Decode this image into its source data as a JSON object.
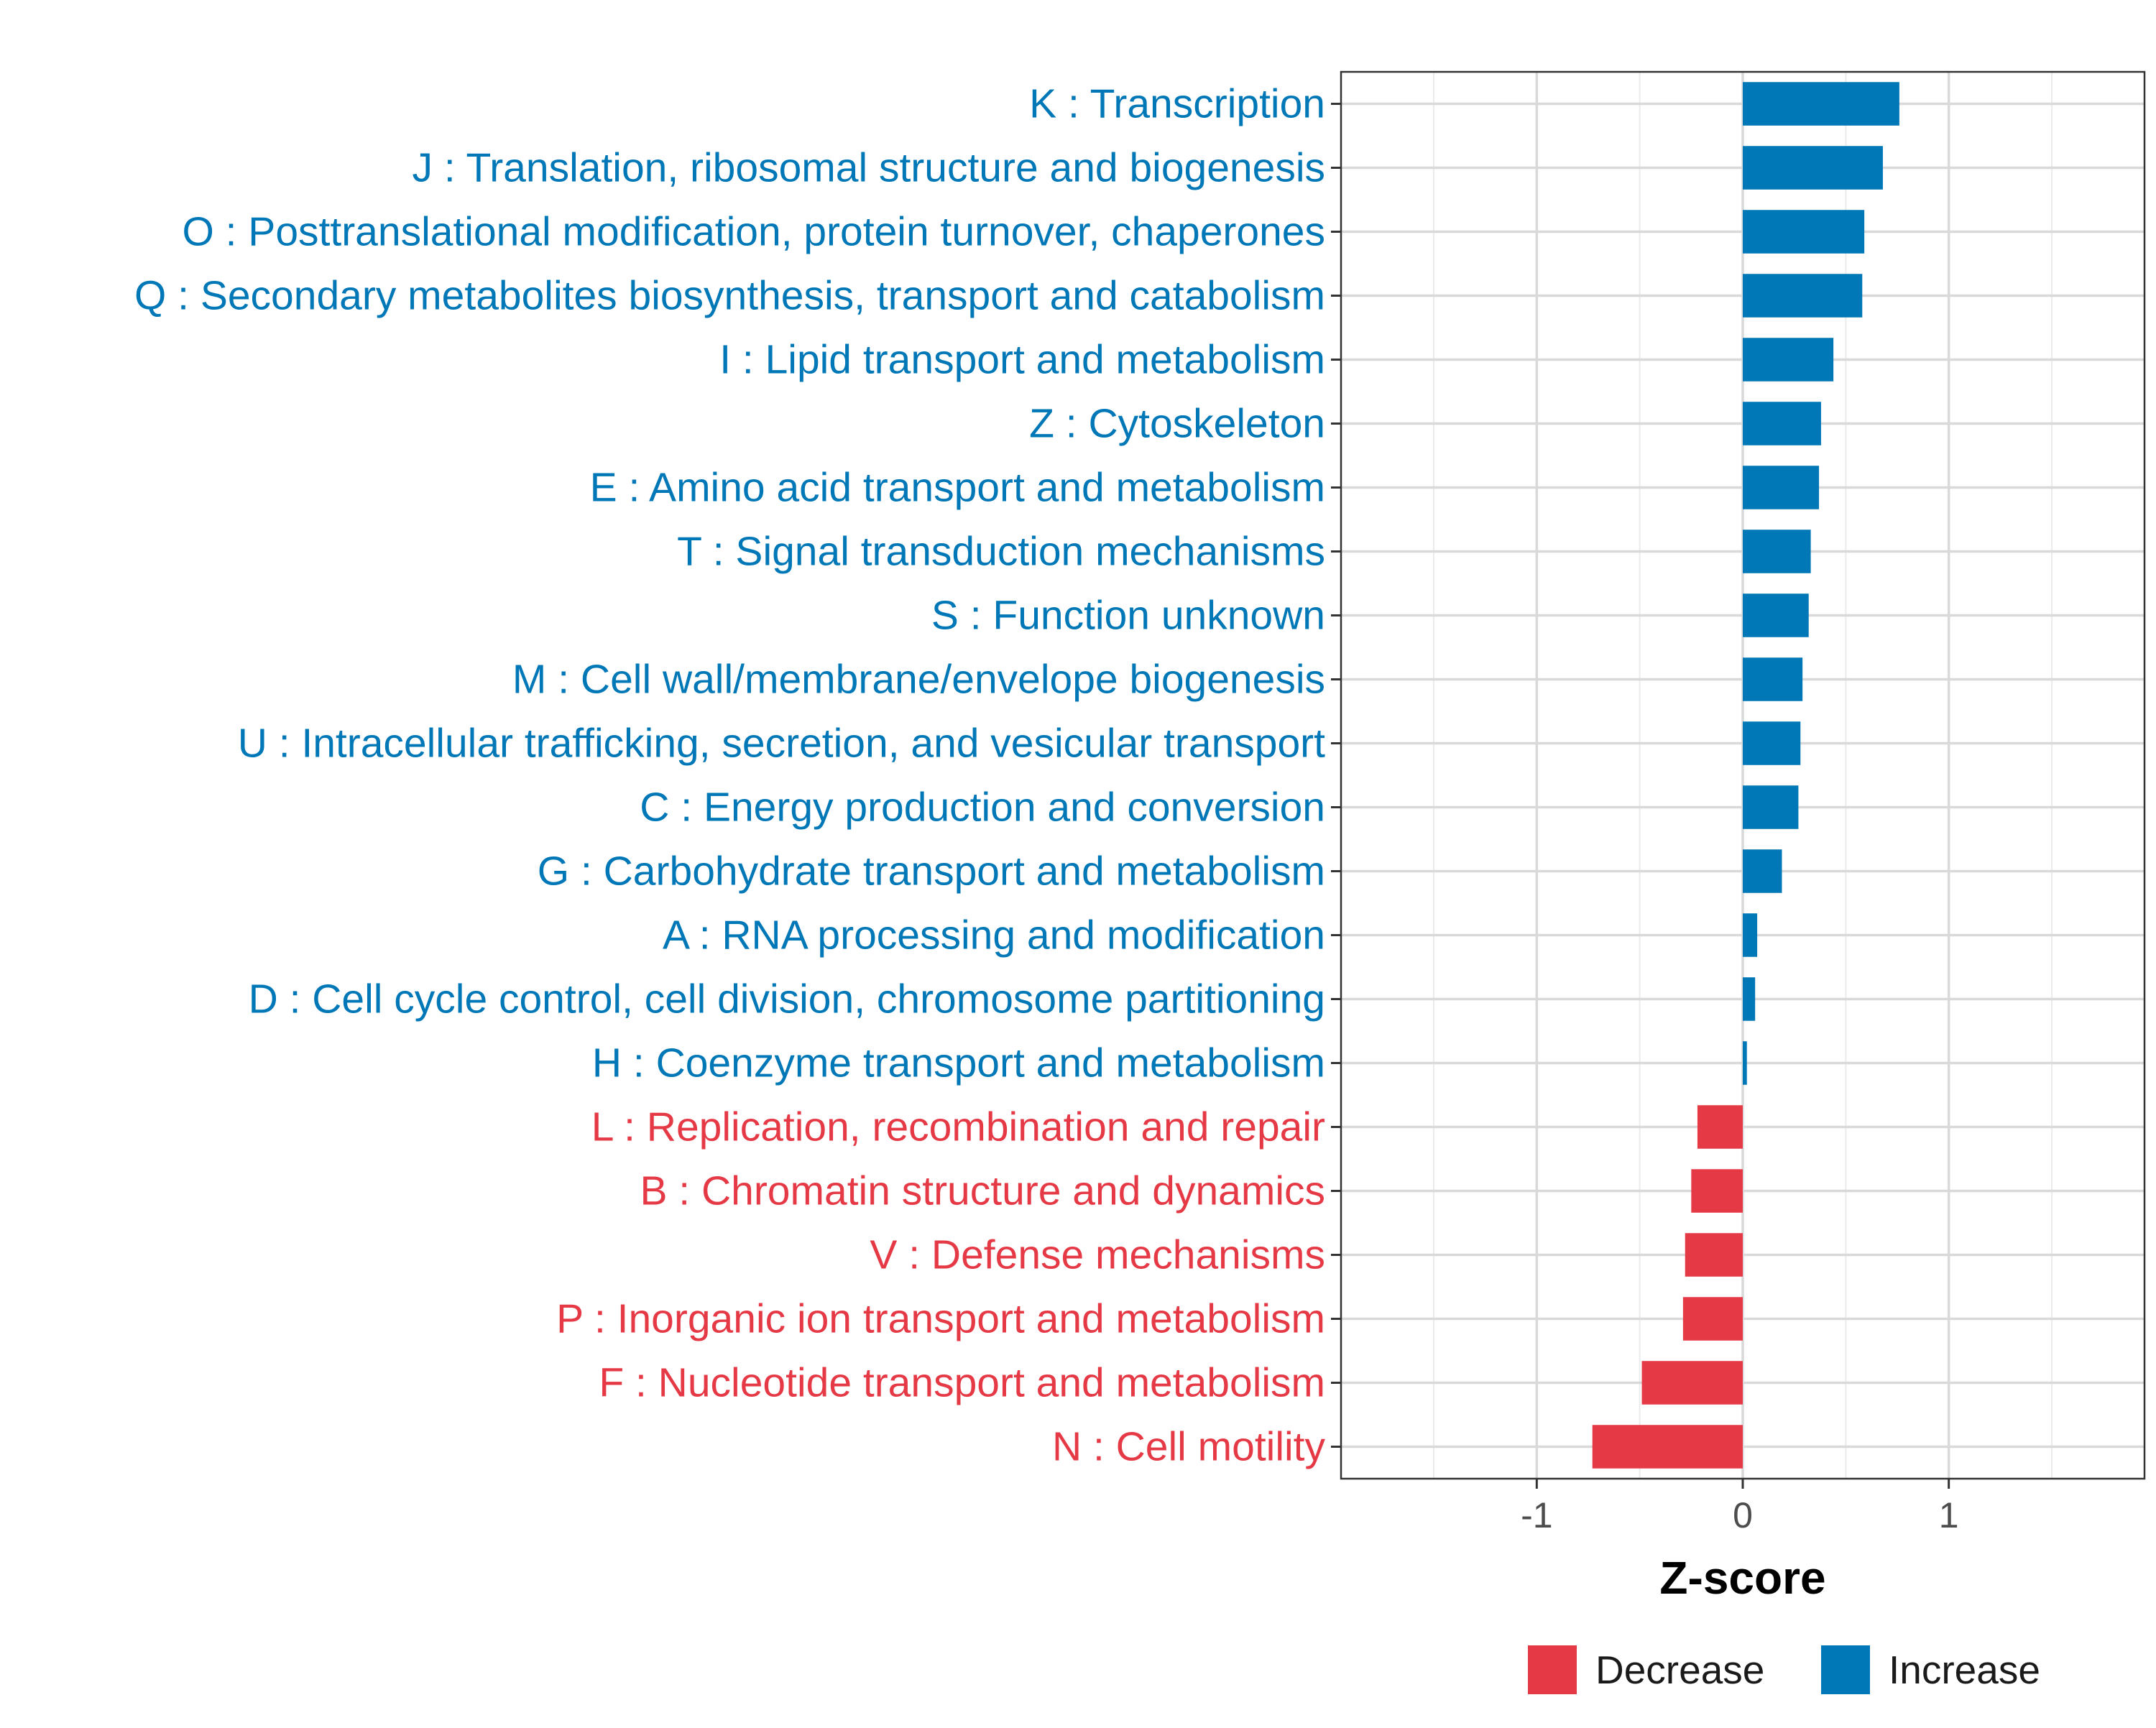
{
  "chart_data": {
    "type": "bar",
    "orientation": "horizontal",
    "title": "",
    "xlabel": "Z-score",
    "ylabel": "",
    "xlim": [
      -1.95,
      1.95
    ],
    "xticks": [
      -1,
      0,
      1
    ],
    "xtick_labels": [
      "-1",
      "0",
      "1"
    ],
    "grid": true,
    "legend_position": "bottom",
    "colors": {
      "Decrease": "#E63946",
      "Increase": "#0077B6"
    },
    "legend": [
      {
        "name": "Decrease",
        "label": "Decrease"
      },
      {
        "name": "Increase",
        "label": "Increase"
      }
    ],
    "categories": [
      "K : Transcription",
      "J : Translation, ribosomal structure and biogenesis",
      "O : Posttranslational modification, protein turnover, chaperones",
      "Q : Secondary metabolites biosynthesis, transport and catabolism",
      "I : Lipid transport and metabolism",
      "Z : Cytoskeleton",
      "E : Amino acid transport and metabolism",
      "T : Signal transduction mechanisms",
      "S : Function unknown",
      "M : Cell wall/membrane/envelope biogenesis",
      "U : Intracellular trafficking, secretion, and vesicular transport",
      "C : Energy production and conversion",
      "G : Carbohydrate transport and metabolism",
      "A : RNA processing and modification",
      "D : Cell cycle control, cell division, chromosome partitioning",
      "H : Coenzyme transport and metabolism",
      "L : Replication, recombination and repair",
      "B : Chromatin structure and dynamics",
      "V : Defense mechanisms",
      "P : Inorganic ion transport and metabolism",
      "F : Nucleotide transport and metabolism",
      "N : Cell motility"
    ],
    "values": [
      0.76,
      0.68,
      0.59,
      0.58,
      0.44,
      0.38,
      0.37,
      0.33,
      0.32,
      0.29,
      0.28,
      0.27,
      0.19,
      0.07,
      0.06,
      0.02,
      -0.22,
      -0.25,
      -0.28,
      -0.29,
      -0.49,
      -0.73
    ],
    "groups": [
      "Increase",
      "Increase",
      "Increase",
      "Increase",
      "Increase",
      "Increase",
      "Increase",
      "Increase",
      "Increase",
      "Increase",
      "Increase",
      "Increase",
      "Increase",
      "Increase",
      "Increase",
      "Increase",
      "Decrease",
      "Decrease",
      "Decrease",
      "Decrease",
      "Decrease",
      "Decrease"
    ]
  }
}
